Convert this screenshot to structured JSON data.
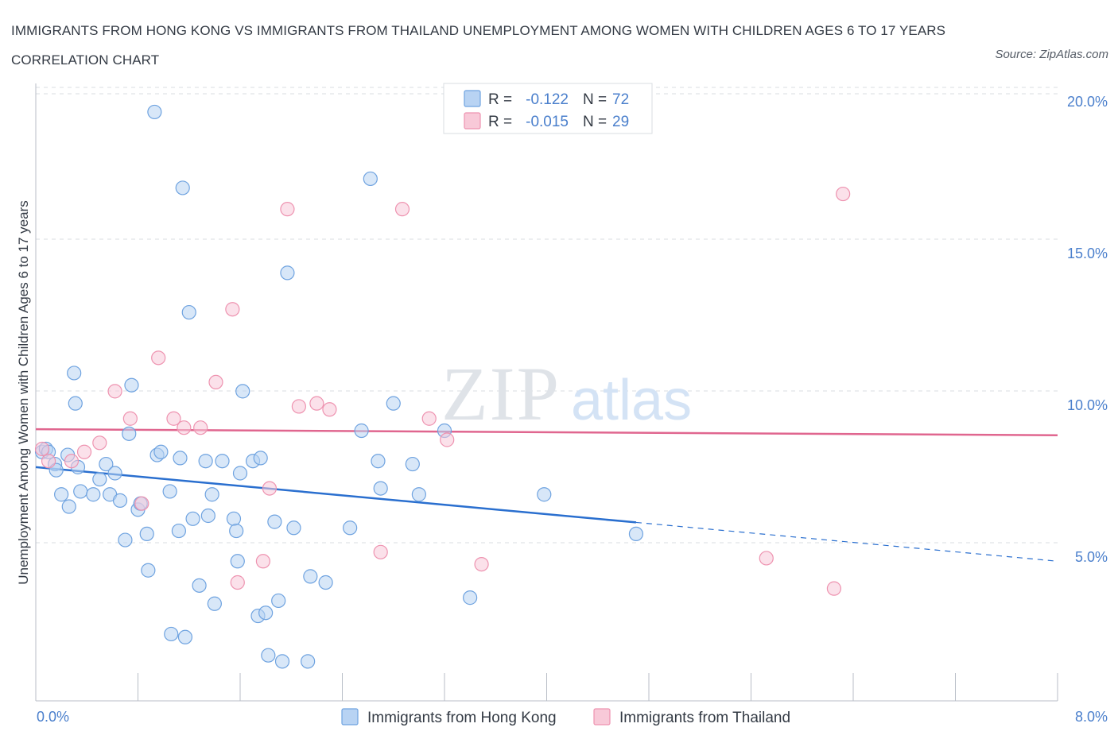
{
  "title": "IMMIGRANTS FROM HONG KONG VS IMMIGRANTS FROM THAILAND UNEMPLOYMENT AMONG WOMEN WITH CHILDREN AGES 6 TO 17 YEARS CORRELATION CHART",
  "source": "Source: ZipAtlas.com",
  "watermark": {
    "zip": "ZIP",
    "atlas": "atlas"
  },
  "colors": {
    "hong_kong": "#6fa3e0",
    "hong_kong_fill": "#b8d3f3",
    "hong_kong_line": "#2a6fcf",
    "thailand": "#ee93b0",
    "thailand_fill": "#f8c9d8",
    "thailand_line": "#e0668f",
    "tick_label": "#4a7fcc",
    "grid": "#d8dce2"
  },
  "legend": {
    "rows": [
      {
        "r_label": "R =",
        "r_value": "-0.122",
        "n_label": "N =",
        "n_value": "72",
        "series": "hong_kong"
      },
      {
        "r_label": "R =",
        "r_value": "-0.015",
        "n_label": "N =",
        "n_value": "29",
        "series": "thailand"
      }
    ]
  },
  "chart_data": {
    "type": "scatter",
    "title": "IMMIGRANTS FROM HONG KONG VS IMMIGRANTS FROM THAILAND UNEMPLOYMENT AMONG WOMEN WITH CHILDREN AGES 6 TO 17 YEARS CORRELATION CHART",
    "xlabel": "",
    "ylabel": "Unemployment Among Women with Children Ages 6 to 17 years",
    "xlim": [
      0,
      8
    ],
    "ylim": [
      0,
      20
    ],
    "x_tick_labels": [
      "0.0%",
      "8.0%"
    ],
    "y_ticks": [
      5,
      10,
      15,
      20
    ],
    "y_tick_labels": [
      "5.0%",
      "10.0%",
      "15.0%",
      "20.0%"
    ],
    "grid": true,
    "legend_position": "top-center",
    "series": [
      {
        "name": "Immigrants from Hong Kong",
        "points": [
          [
            0.05,
            8.2
          ],
          [
            0.08,
            8.3
          ],
          [
            0.1,
            8.2
          ],
          [
            0.15,
            7.8
          ],
          [
            0.16,
            7.6
          ],
          [
            0.2,
            6.8
          ],
          [
            0.26,
            6.4
          ],
          [
            0.3,
            10.8
          ],
          [
            0.31,
            9.8
          ],
          [
            0.33,
            7.7
          ],
          [
            0.35,
            6.9
          ],
          [
            0.45,
            6.8
          ],
          [
            0.5,
            7.3
          ],
          [
            0.55,
            7.8
          ],
          [
            0.58,
            6.8
          ],
          [
            0.62,
            7.5
          ],
          [
            0.66,
            6.6
          ],
          [
            0.7,
            5.3
          ],
          [
            0.73,
            8.8
          ],
          [
            0.75,
            10.4
          ],
          [
            0.8,
            6.3
          ],
          [
            0.82,
            6.5
          ],
          [
            0.87,
            5.5
          ],
          [
            0.88,
            4.3
          ],
          [
            0.93,
            19.4
          ],
          [
            0.95,
            8.1
          ],
          [
            0.98,
            8.2
          ],
          [
            1.05,
            6.9
          ],
          [
            1.06,
            2.2
          ],
          [
            1.12,
            5.6
          ],
          [
            1.15,
            16.9
          ],
          [
            1.17,
            2.1
          ],
          [
            1.2,
            12.8
          ],
          [
            1.23,
            6.0
          ],
          [
            1.28,
            3.8
          ],
          [
            1.33,
            7.9
          ],
          [
            1.35,
            6.1
          ],
          [
            1.38,
            6.8
          ],
          [
            1.4,
            3.2
          ],
          [
            1.46,
            7.9
          ],
          [
            1.55,
            6.0
          ],
          [
            1.57,
            5.6
          ],
          [
            1.58,
            4.6
          ],
          [
            1.6,
            7.5
          ],
          [
            1.62,
            10.2
          ],
          [
            1.7,
            7.9
          ],
          [
            1.74,
            2.8
          ],
          [
            1.76,
            8.0
          ],
          [
            1.8,
            2.9
          ],
          [
            1.82,
            1.5
          ],
          [
            1.87,
            5.9
          ],
          [
            1.9,
            3.3
          ],
          [
            1.93,
            1.3
          ],
          [
            1.97,
            14.1
          ],
          [
            2.02,
            5.7
          ],
          [
            2.13,
            1.3
          ],
          [
            2.15,
            4.1
          ],
          [
            2.27,
            3.9
          ],
          [
            2.46,
            5.7
          ],
          [
            2.55,
            8.9
          ],
          [
            2.62,
            17.2
          ],
          [
            2.68,
            7.9
          ],
          [
            2.7,
            7.0
          ],
          [
            2.8,
            9.8
          ],
          [
            2.95,
            7.8
          ],
          [
            3.0,
            6.8
          ],
          [
            3.2,
            8.9
          ],
          [
            3.4,
            3.4
          ],
          [
            3.98,
            6.8
          ],
          [
            4.7,
            5.5
          ],
          [
            0.25,
            8.1
          ],
          [
            1.13,
            8.0
          ]
        ]
      },
      {
        "name": "Immigrants from Thailand",
        "points": [
          [
            0.05,
            8.3
          ],
          [
            0.1,
            7.9
          ],
          [
            0.28,
            7.9
          ],
          [
            0.38,
            8.2
          ],
          [
            0.5,
            8.5
          ],
          [
            0.62,
            10.2
          ],
          [
            0.74,
            9.3
          ],
          [
            0.83,
            6.5
          ],
          [
            0.96,
            11.3
          ],
          [
            1.08,
            9.3
          ],
          [
            1.16,
            9.0
          ],
          [
            1.29,
            9.0
          ],
          [
            1.41,
            10.5
          ],
          [
            1.54,
            12.9
          ],
          [
            1.58,
            3.9
          ],
          [
            1.78,
            4.6
          ],
          [
            1.83,
            7.0
          ],
          [
            1.97,
            16.2
          ],
          [
            2.06,
            9.7
          ],
          [
            2.2,
            9.8
          ],
          [
            2.3,
            9.6
          ],
          [
            2.7,
            4.9
          ],
          [
            2.87,
            16.2
          ],
          [
            3.08,
            9.3
          ],
          [
            3.22,
            8.6
          ],
          [
            3.49,
            4.5
          ],
          [
            5.72,
            4.7
          ],
          [
            6.25,
            3.7
          ],
          [
            6.32,
            16.7
          ]
        ]
      }
    ],
    "trendlines": [
      {
        "series": "Immigrants from Hong Kong",
        "x": [
          0,
          8
        ],
        "y": [
          7.7,
          4.6
        ],
        "solid_until": 4.7
      },
      {
        "series": "Immigrants from Thailand",
        "x": [
          0,
          8
        ],
        "y": [
          8.95,
          8.75
        ]
      }
    ]
  }
}
